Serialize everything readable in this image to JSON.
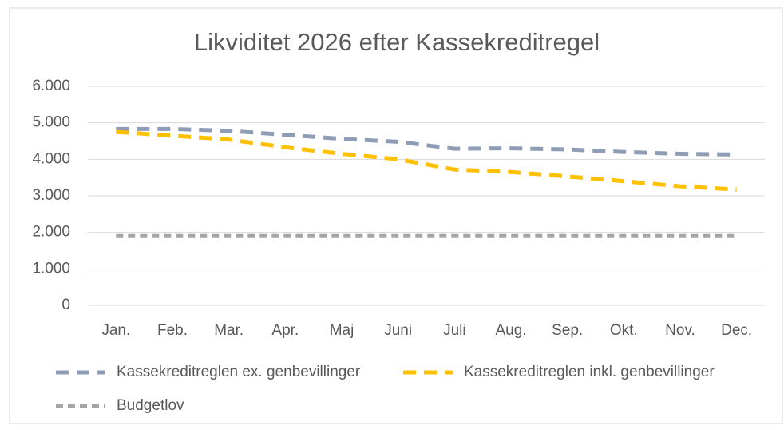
{
  "chart_data": {
    "type": "line",
    "title": "Likviditet 2026 efter Kassekreditregel",
    "categories": [
      "Jan.",
      "Feb.",
      "Mar.",
      "Apr.",
      "Maj",
      "Juni",
      "Juli",
      "Aug.",
      "Sep.",
      "Okt.",
      "Nov.",
      "Dec."
    ],
    "series": [
      {
        "name": "Kassekreditreglen ex. genbevillinger",
        "color": "#8e9db5",
        "values": [
          4830,
          4830,
          4780,
          4670,
          4560,
          4480,
          4290,
          4300,
          4270,
          4200,
          4150,
          4130
        ]
      },
      {
        "name": "Kassekreditreglen inkl. genbevillinger",
        "color": "#ffc000",
        "values": [
          4750,
          4650,
          4540,
          4330,
          4150,
          4000,
          3720,
          3650,
          3530,
          3400,
          3260,
          3170
        ]
      },
      {
        "name": "Budgetlov",
        "color": "#a5a5a5",
        "values": [
          1900,
          1900,
          1900,
          1900,
          1900,
          1900,
          1900,
          1900,
          1900,
          1900,
          1900,
          1900
        ]
      }
    ],
    "ylim": [
      0,
      6000
    ],
    "yticks": [
      0,
      {
        "value": 1000,
        "label": "1.000"
      },
      {
        "value": 2000,
        "label": "2.000"
      },
      {
        "value": 3000,
        "label": "3.000"
      },
      {
        "value": 4000,
        "label": "4.000"
      },
      {
        "value": 5000,
        "label": "5.000"
      },
      {
        "value": 6000,
        "label": "6.000"
      }
    ],
    "grid": true,
    "legend": "bottom"
  }
}
